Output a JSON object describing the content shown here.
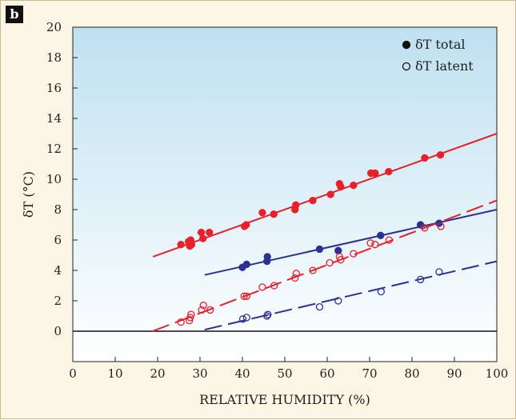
{
  "panel_label": "b",
  "chart_data": {
    "type": "scatter",
    "xlabel": "RELATIVE HUMIDITY (%)",
    "ylabel": "δT (°C)",
    "xlim": [
      0,
      100
    ],
    "ylim": [
      -2,
      20
    ],
    "x_ticks": [
      0,
      10,
      20,
      30,
      40,
      50,
      60,
      70,
      80,
      90,
      100
    ],
    "y_ticks": [
      0,
      2,
      4,
      6,
      8,
      10,
      12,
      14,
      16,
      18,
      20
    ],
    "grid": false,
    "legend_position": "top-right",
    "legend": [
      {
        "label": "δT total",
        "marker": "filled-circle"
      },
      {
        "label": "δT latent",
        "marker": "open-circle"
      }
    ],
    "colors": {
      "red": "#e8202a",
      "blue": "#2a3196",
      "zero_line": "#111111"
    },
    "series": [
      {
        "group": "total",
        "color": "red",
        "filled": true,
        "points": [
          [
            25.5,
            5.7
          ],
          [
            27.3,
            5.9
          ],
          [
            27.6,
            5.6
          ],
          [
            27.8,
            6.0
          ],
          [
            28.0,
            5.7
          ],
          [
            30.3,
            6.5
          ],
          [
            30.7,
            6.1
          ],
          [
            32.2,
            6.5
          ],
          [
            40.5,
            6.9
          ],
          [
            40.9,
            7.0
          ],
          [
            44.7,
            7.8
          ],
          [
            47.4,
            7.7
          ],
          [
            52.4,
            8.0
          ],
          [
            52.6,
            8.3
          ],
          [
            56.6,
            8.6
          ],
          [
            60.8,
            9.0
          ],
          [
            62.9,
            9.7
          ],
          [
            63.2,
            9.5
          ],
          [
            66.2,
            9.6
          ],
          [
            70.3,
            10.4
          ],
          [
            71.3,
            10.4
          ],
          [
            74.5,
            10.5
          ],
          [
            83.0,
            11.4
          ],
          [
            86.7,
            11.6
          ]
        ],
        "fit": [
          [
            18.9,
            4.9
          ],
          [
            100,
            13.0
          ]
        ],
        "fit_dash": false
      },
      {
        "group": "total",
        "color": "blue",
        "filled": true,
        "points": [
          [
            40.0,
            4.2
          ],
          [
            41.0,
            4.4
          ],
          [
            45.8,
            4.6
          ],
          [
            45.9,
            4.9
          ],
          [
            58.2,
            5.4
          ],
          [
            62.6,
            5.3
          ],
          [
            72.6,
            6.3
          ],
          [
            82.0,
            7.0
          ],
          [
            86.4,
            7.1
          ]
        ],
        "fit": [
          [
            31.1,
            3.7
          ],
          [
            100,
            8.0
          ]
        ],
        "fit_dash": false
      },
      {
        "group": "latent",
        "color": "red",
        "filled": false,
        "points": [
          [
            25.5,
            0.6
          ],
          [
            27.5,
            0.7
          ],
          [
            27.7,
            0.9
          ],
          [
            27.9,
            1.1
          ],
          [
            30.4,
            1.4
          ],
          [
            30.8,
            1.7
          ],
          [
            32.4,
            1.4
          ],
          [
            40.4,
            2.3
          ],
          [
            41.0,
            2.3
          ],
          [
            44.7,
            2.9
          ],
          [
            47.5,
            3.0
          ],
          [
            52.4,
            3.5
          ],
          [
            52.7,
            3.8
          ],
          [
            56.6,
            4.0
          ],
          [
            60.6,
            4.5
          ],
          [
            62.9,
            4.9
          ],
          [
            63.2,
            4.7
          ],
          [
            66.2,
            5.1
          ],
          [
            70.2,
            5.8
          ],
          [
            71.3,
            5.7
          ],
          [
            74.6,
            6.0
          ],
          [
            83.0,
            6.8
          ],
          [
            86.8,
            6.9
          ]
        ],
        "fit": [
          [
            18.8,
            0.0
          ],
          [
            100,
            8.6
          ]
        ],
        "fit_dash": true
      },
      {
        "group": "latent",
        "color": "blue",
        "filled": false,
        "points": [
          [
            40.1,
            0.8
          ],
          [
            41.0,
            0.9
          ],
          [
            45.8,
            1.0
          ],
          [
            46.0,
            1.1
          ],
          [
            58.2,
            1.6
          ],
          [
            62.6,
            2.0
          ],
          [
            72.7,
            2.6
          ],
          [
            82.0,
            3.4
          ],
          [
            86.4,
            3.9
          ]
        ],
        "fit": [
          [
            31.1,
            0.1
          ],
          [
            100,
            4.6
          ]
        ],
        "fit_dash": true
      }
    ]
  }
}
